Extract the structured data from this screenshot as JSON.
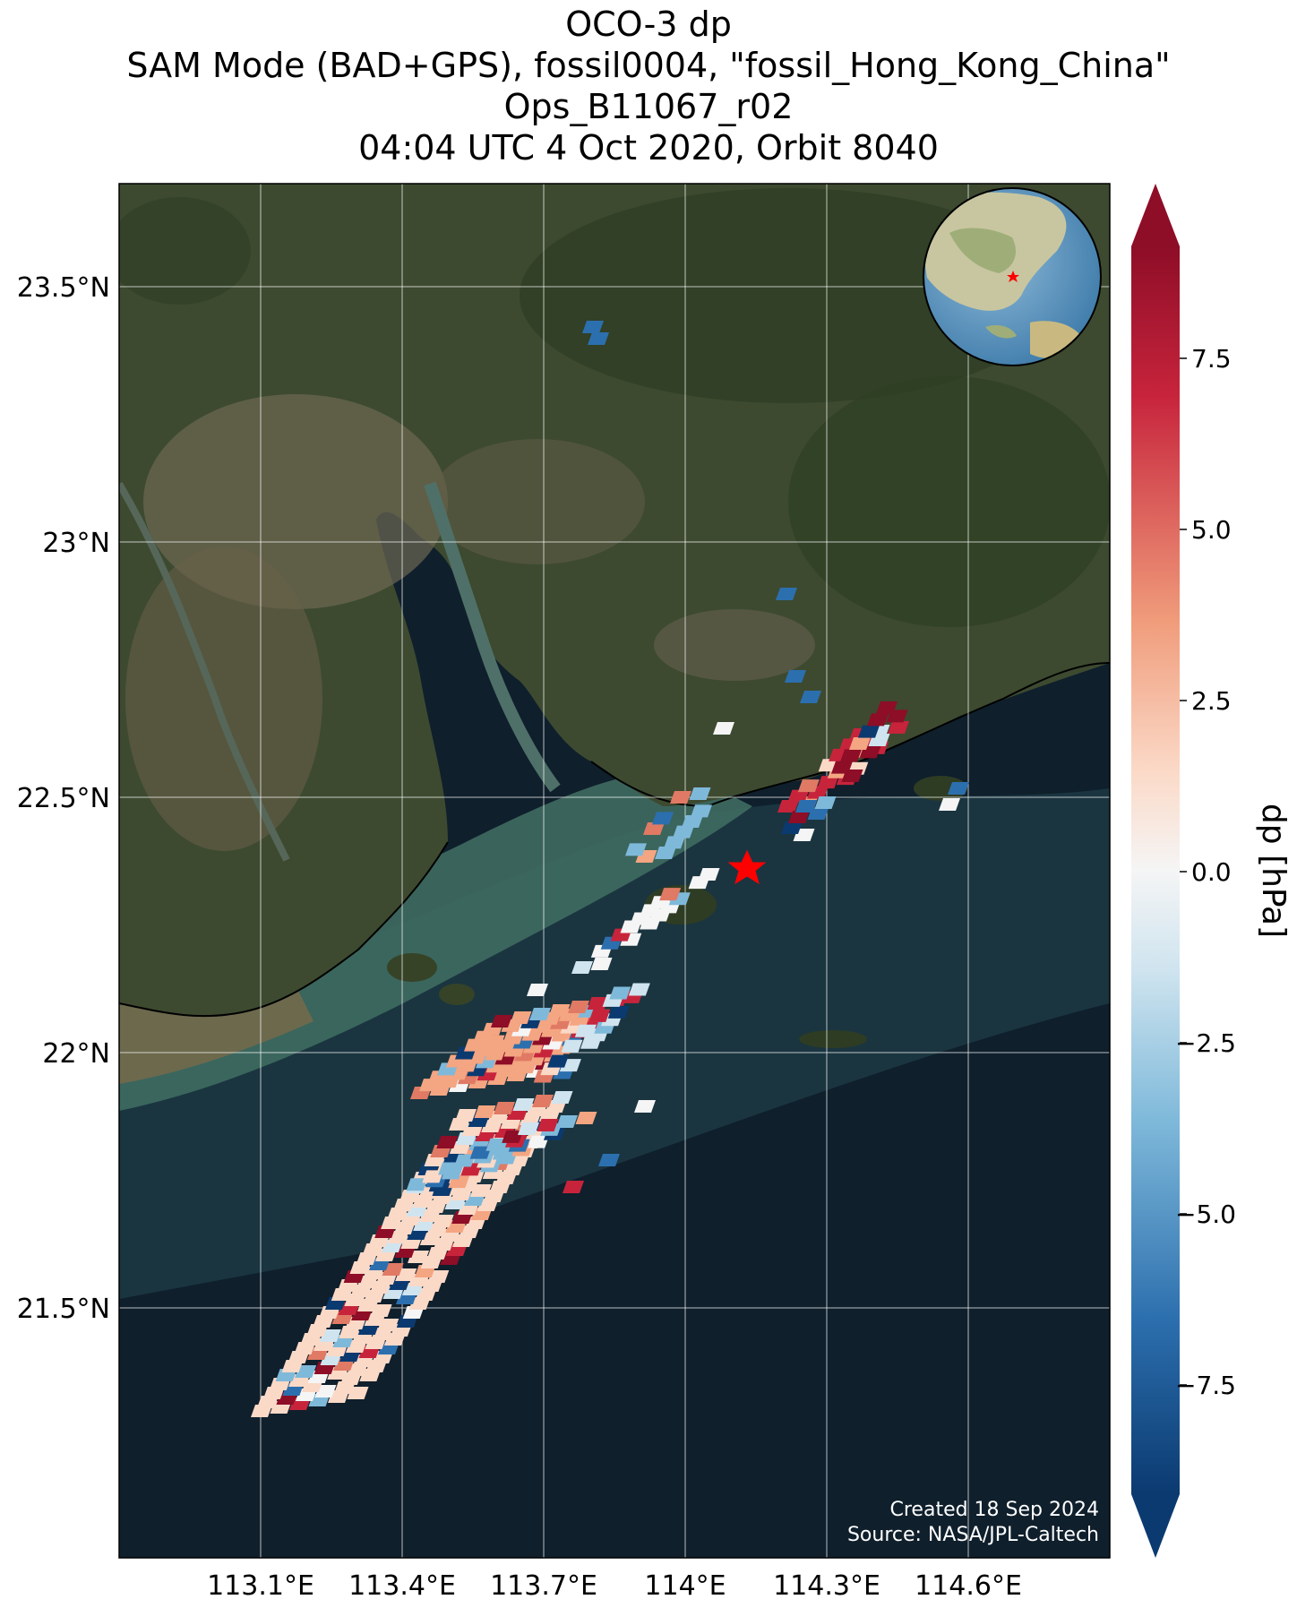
{
  "title_lines": [
    "OCO-3 dp",
    "SAM Mode (BAD+GPS), fossil0004, \"fossil_Hong_Kong_China\"",
    "Ops_B11067_r02",
    "04:04 UTC 4 Oct 2020, Orbit 8040"
  ],
  "map": {
    "lat_ticks": [
      "23.5°N",
      "23°N",
      "22.5°N",
      "22°N",
      "21.5°N"
    ],
    "lon_ticks": [
      "113.1°E",
      "113.4°E",
      "113.7°E",
      "114°E",
      "114.3°E",
      "114.6°E"
    ],
    "lat_range": [
      21.2,
      23.7
    ],
    "lon_range": [
      112.8,
      114.9
    ],
    "target_marker": "red-star",
    "credit_lines": [
      "Created 18 Sep 2024",
      "Source: NASA/JPL-Caltech"
    ],
    "inset": "globe-locator"
  },
  "colorbar": {
    "label": "dp [hPa]",
    "ticks": [
      "7.5",
      "5.0",
      "2.5",
      "0.0",
      "−2.5",
      "−5.0",
      "−7.5"
    ],
    "range": [
      -9.5,
      9.5
    ],
    "colormap": "RdBu_r"
  },
  "colors": {
    "deep_red": "#67001f",
    "red": "#c7243c",
    "light_red": "#f4a582",
    "white": "#f7f7f7",
    "light_blue": "#92c5de",
    "blue": "#2f70b0",
    "deep_blue": "#053061",
    "ocean": "#0f1f2c",
    "land": "#3d4a30"
  }
}
